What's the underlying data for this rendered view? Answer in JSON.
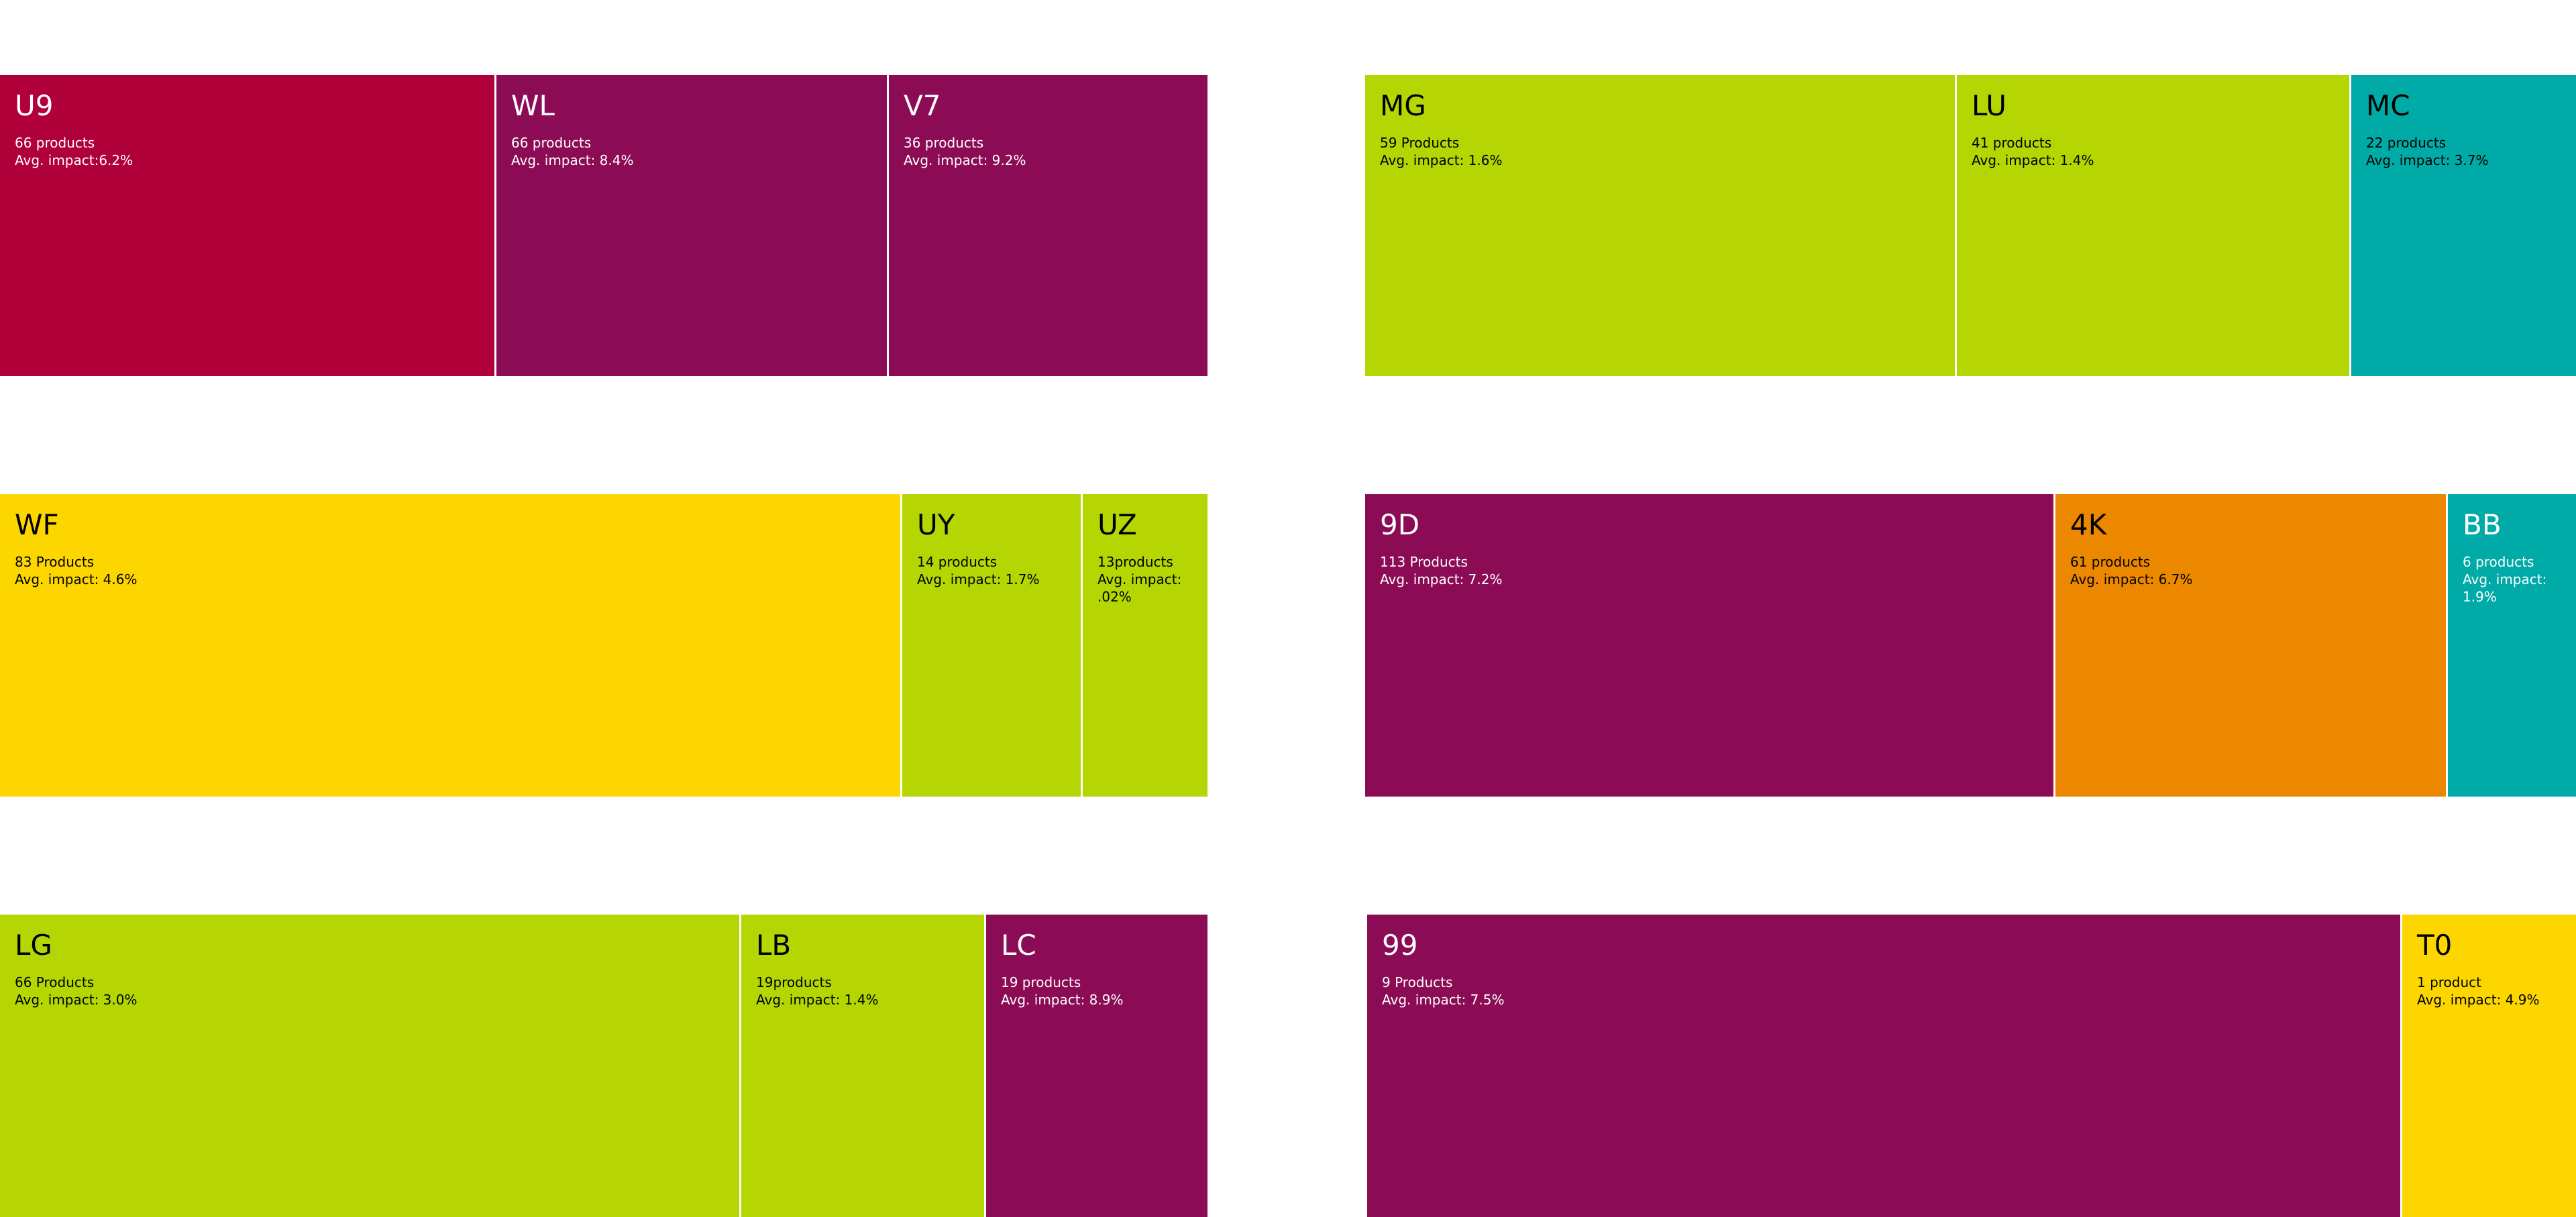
{
  "colors": {
    "crimson": "#B0003A",
    "purple": "#8B0C55",
    "lime": "#B5D603",
    "teal": "#00AAA6",
    "yellow": "#FDD600",
    "orange": "#EC8800"
  },
  "tiles": [
    {
      "code": "U9",
      "products": "66 products",
      "impact": "Avg. impact:6.2%",
      "color": "#B0003A",
      "text": "#ffffff"
    },
    {
      "code": "WL",
      "products": "66 products",
      "impact": "Avg. impact: 8.4%",
      "color": "#8B0C55",
      "text": "#ffffff"
    },
    {
      "code": "V7",
      "products": "36 products",
      "impact": "Avg. impact: 9.2%",
      "color": "#8B0C55",
      "text": "#ffffff"
    },
    {
      "code": "MG",
      "products": "59 Products",
      "impact": "Avg. impact: 1.6%",
      "color": "#B5D603",
      "text": "#000000"
    },
    {
      "code": "LU",
      "products": "41 products",
      "impact": "Avg. impact: 1.4%",
      "color": "#B5D603",
      "text": "#000000"
    },
    {
      "code": "MC",
      "products": "22 products",
      "impact": "Avg. impact: 3.7%",
      "color": "#00AAA6",
      "text": "#000000"
    },
    {
      "code": "WF",
      "products": "83 Products",
      "impact": "Avg. impact: 4.6%",
      "color": "#FDD600",
      "text": "#000000"
    },
    {
      "code": "UY",
      "products": "14 products",
      "impact": "Avg. impact: 1.7%",
      "color": "#B5D603",
      "text": "#000000"
    },
    {
      "code": "UZ",
      "products": "13products",
      "impact": "Avg. impact: .02%",
      "color": "#B5D603",
      "text": "#000000"
    },
    {
      "code": "9D",
      "products": "113 Products",
      "impact": "Avg. impact: 7.2%",
      "color": "#8B0C55",
      "text": "#ffffff"
    },
    {
      "code": "4K",
      "products": "61 products",
      "impact": "Avg. impact: 6.7%",
      "color": "#EC8800",
      "text": "#000000"
    },
    {
      "code": "BB",
      "products": "6 products",
      "impact": "Avg. impact: 1.9%",
      "color": "#00AAA6",
      "text": "#ffffff"
    },
    {
      "code": "LG",
      "products": "66 Products",
      "impact": "Avg. impact: 3.0%",
      "color": "#B5D603",
      "text": "#000000"
    },
    {
      "code": "LB",
      "products": "19products",
      "impact": "Avg. impact: 1.4%",
      "color": "#B5D603",
      "text": "#000000"
    },
    {
      "code": "LC",
      "products": "19 products",
      "impact": "Avg. impact: 8.9%",
      "color": "#8B0C55",
      "text": "#ffffff"
    },
    {
      "code": "99",
      "products": "9 Products",
      "impact": "Avg. impact: 7.5%",
      "color": "#8B0C55",
      "text": "#ffffff"
    },
    {
      "code": "T0",
      "products": "1 product",
      "impact": "Avg. impact: 4.9%",
      "color": "#FDD600",
      "text": "#000000"
    }
  ]
}
